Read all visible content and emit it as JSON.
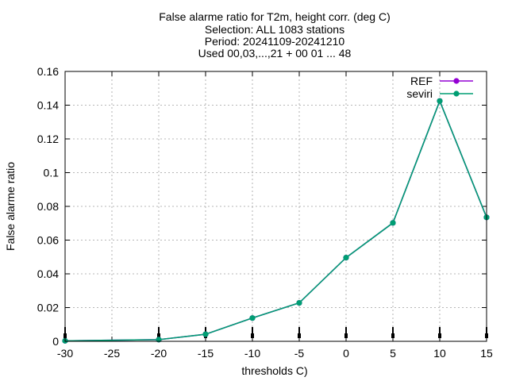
{
  "chart_data": {
    "type": "line",
    "title_lines": [
      "False alarme ratio  for T2m, height corr. (deg C)",
      "Selection: ALL    1083 stations",
      "Period: 20241109-20241210",
      "Used 00,03,...,21 + 00 01 ... 48"
    ],
    "xlabel": "thresholds C)",
    "ylabel": "False alarme ratio",
    "xlim": [
      -30,
      15
    ],
    "ylim": [
      0,
      0.16
    ],
    "xticks": [
      -30,
      -25,
      -20,
      -15,
      -10,
      -5,
      0,
      5,
      10,
      15
    ],
    "xtick_labels": [
      "-30",
      "-25",
      "-20",
      "-15",
      "-10",
      "-5",
      "0",
      "5",
      "10",
      "15"
    ],
    "yticks": [
      0,
      0.02,
      0.04,
      0.06,
      0.08,
      0.1,
      0.12,
      0.14,
      0.16
    ],
    "ytick_labels": [
      "0",
      "0.02",
      "0.04",
      "0.06",
      "0.08",
      "0.1",
      "0.12",
      "0.14",
      "0.16"
    ],
    "grid": true,
    "legend_position": "top-right",
    "x": [
      -30,
      -20,
      -15,
      -10,
      -5,
      0,
      5,
      10,
      15
    ],
    "series": [
      {
        "name": "REF",
        "color": "#9400d3",
        "values": [
          0.0003,
          0.001,
          0.0042,
          0.0138,
          0.0228,
          0.0496,
          0.0702,
          0.1425,
          0.0735
        ]
      },
      {
        "name": "seviri",
        "color": "#009e73",
        "values": [
          0.0003,
          0.001,
          0.0042,
          0.0138,
          0.0228,
          0.0496,
          0.0702,
          0.1425,
          0.0735
        ]
      }
    ]
  }
}
